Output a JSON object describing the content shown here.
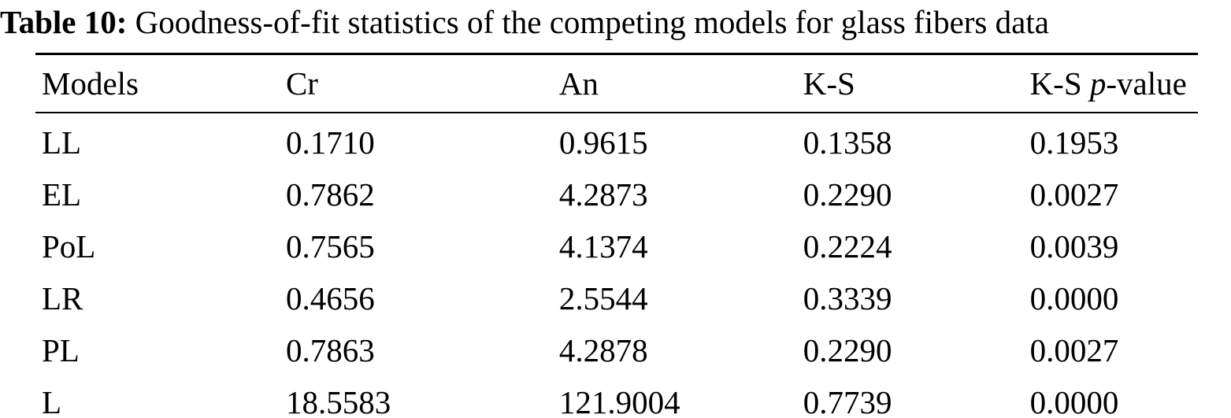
{
  "caption": {
    "label": "Table 10:",
    "text": " Goodness-of-fit statistics of the competing models for glass fibers data"
  },
  "table": {
    "headers": [
      "Models",
      "Cr",
      "An",
      "K-S"
    ],
    "ks_pvalue_header": {
      "prefix": "K-S ",
      "italic": "p",
      "suffix": "-value"
    },
    "rows": [
      [
        "LL",
        "0.1710",
        "0.9615",
        "0.1358",
        "0.1953"
      ],
      [
        "EL",
        "0.7862",
        "4.2873",
        "0.2290",
        "0.0027"
      ],
      [
        "PoL",
        "0.7565",
        "4.1374",
        "0.2224",
        "0.0039"
      ],
      [
        "LR",
        "0.4656",
        "2.5544",
        "0.3339",
        "0.0000"
      ],
      [
        "PL",
        "0.7863",
        "4.2878",
        "0.2290",
        "0.0027"
      ],
      [
        "L",
        "18.5583",
        "121.9004",
        "0.7739",
        "0.0000"
      ]
    ]
  },
  "colors": {
    "text": "#000000",
    "background": "#ffffff",
    "rule": "#000000"
  }
}
